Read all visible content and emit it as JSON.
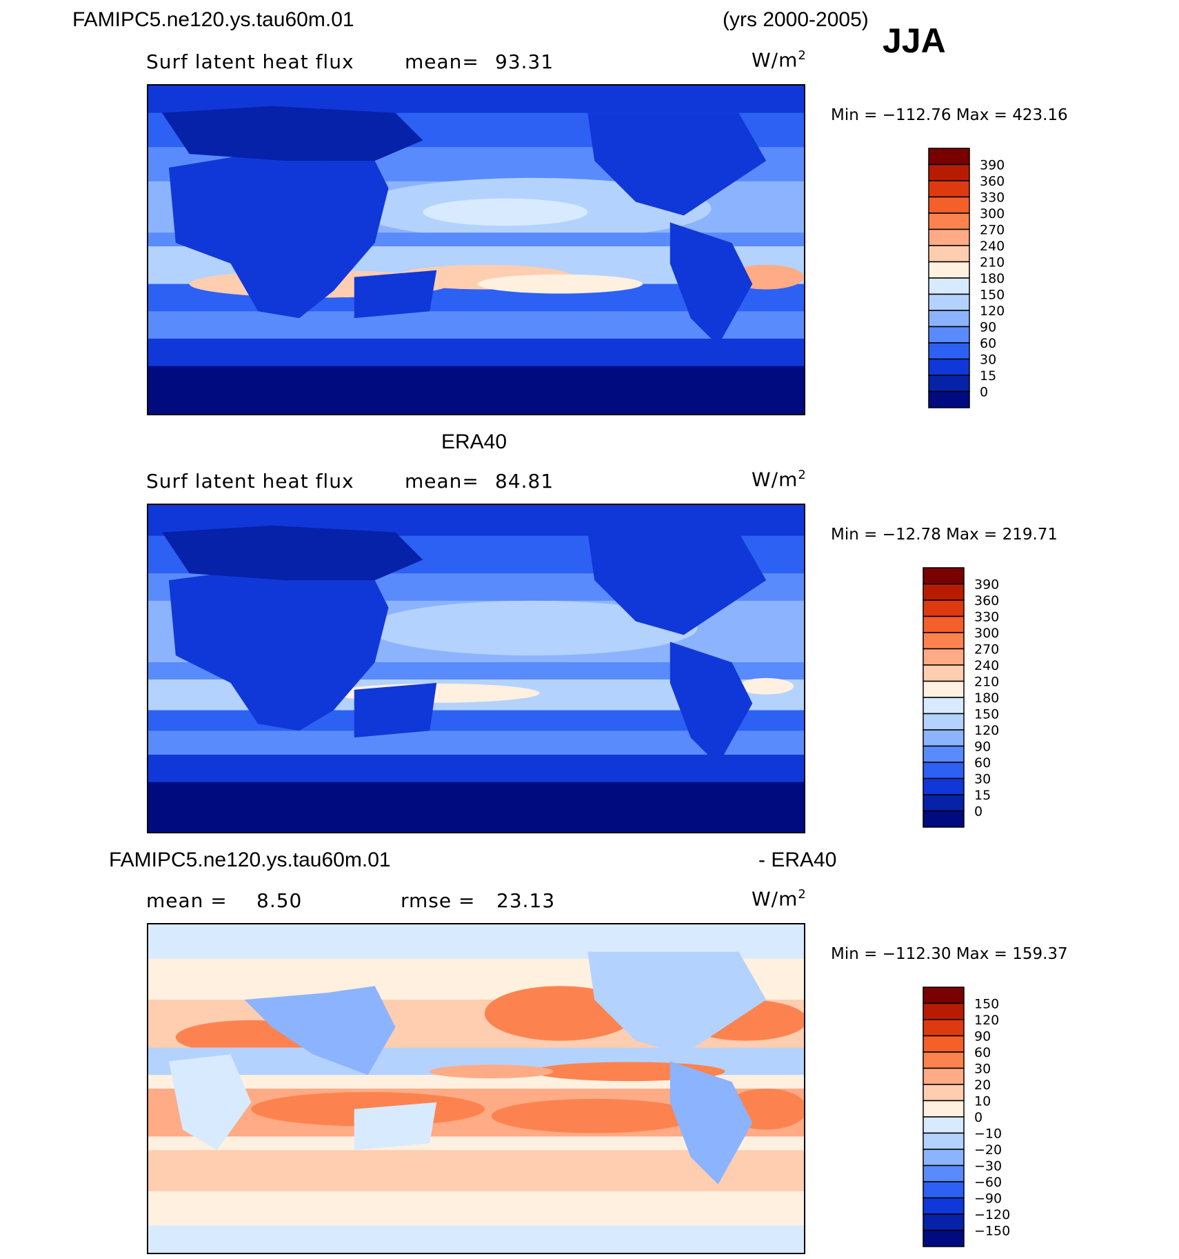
{
  "header": {
    "case_name": "FAMIPC5.ne120.ys.tau60m.01",
    "years": "(yrs 2000-2005)",
    "season": "JJA"
  },
  "panels": [
    {
      "id": "model",
      "title": "",
      "variable": "Surf latent heat flux",
      "stat1": "mean=",
      "stat1_value": "93.31",
      "stat2": "",
      "stat2_value": "",
      "units": "W/m",
      "units_exp": "2",
      "minmax": "Min = −112.76 Max = 423.16",
      "levels": [
        "390",
        "360",
        "330",
        "300",
        "270",
        "240",
        "210",
        "180",
        "150",
        "120",
        "90",
        "60",
        "30",
        "15",
        "0"
      ],
      "colors": [
        "#7a0000",
        "#b81c00",
        "#de3a10",
        "#f55f2a",
        "#fc8350",
        "#ffab85",
        "#ffcdb0",
        "#fff0e0",
        "#d8eafe",
        "#b4d2fe",
        "#8cb3fe",
        "#5a8bfc",
        "#2d61f4",
        "#1038d8",
        "#0522a8",
        "#000b80"
      ]
    },
    {
      "id": "obs",
      "title": "ERA40",
      "variable": "Surf latent heat flux",
      "stat1": "mean=",
      "stat1_value": "84.81",
      "stat2": "",
      "stat2_value": "",
      "units": "W/m",
      "units_exp": "2",
      "minmax": "Min = −12.78 Max = 219.71",
      "levels": [
        "390",
        "360",
        "330",
        "300",
        "270",
        "240",
        "210",
        "180",
        "150",
        "120",
        "90",
        "60",
        "30",
        "15",
        "0"
      ],
      "colors": [
        "#7a0000",
        "#b81c00",
        "#de3a10",
        "#f55f2a",
        "#fc8350",
        "#ffab85",
        "#ffcdb0",
        "#fff0e0",
        "#d8eafe",
        "#b4d2fe",
        "#8cb3fe",
        "#5a8bfc",
        "#2d61f4",
        "#1038d8",
        "#0522a8",
        "#000b80"
      ]
    },
    {
      "id": "diff",
      "title_left": "FAMIPC5.ne120.ys.tau60m.01",
      "title_right": "- ERA40",
      "variable": "",
      "stat1": "mean =",
      "stat1_value": "8.50",
      "stat2": "rmse =",
      "stat2_value": "23.13",
      "units": "W/m",
      "units_exp": "2",
      "minmax": "Min = −112.30 Max = 159.37",
      "levels": [
        "150",
        "120",
        "90",
        "60",
        "30",
        "20",
        "10",
        "0",
        "−10",
        "−20",
        "−30",
        "−60",
        "−90",
        "−120",
        "−150"
      ],
      "colors": [
        "#7a0000",
        "#b81c00",
        "#de3a10",
        "#f55f2a",
        "#fc8350",
        "#ffab85",
        "#ffcdb0",
        "#fff0e0",
        "#d8eafe",
        "#b4d2fe",
        "#8cb3fe",
        "#5a8bfc",
        "#2d61f4",
        "#1038d8",
        "#0522a8",
        "#000b80"
      ]
    }
  ]
}
